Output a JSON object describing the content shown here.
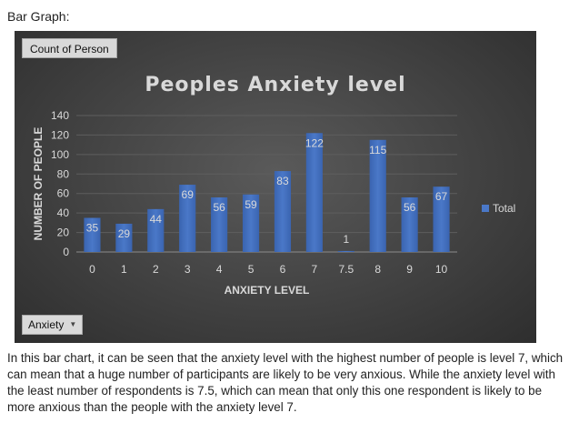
{
  "heading": "Bar Graph:",
  "pivot": {
    "value_field": "Count of Person",
    "filter_field": "Anxiety"
  },
  "caption": "In this bar chart, it can be seen that the anxiety level with the highest number of people is level 7, which can mean that a huge number of participants are likely to be very anxious. While the anxiety level with the least number of respondents is 7.5, which can mean that only this one respondent is likely to be more anxious than the people with the anxiety level 7.",
  "colors": {
    "bar": "#4a78c8",
    "background": "#3f3f3f",
    "text": "#d9d9d9"
  },
  "chart_data": {
    "type": "bar",
    "title": "Peoples Anxiety level",
    "xlabel": "ANXIETY LEVEL",
    "ylabel": "NUMBER OF PEOPLE",
    "categories": [
      "0",
      "1",
      "2",
      "3",
      "4",
      "5",
      "6",
      "7",
      "7.5",
      "8",
      "9",
      "10"
    ],
    "series": [
      {
        "name": "Total",
        "values": [
          35,
          29,
          44,
          69,
          56,
          59,
          83,
          122,
          1,
          115,
          56,
          67
        ]
      }
    ],
    "ylim": [
      0,
      140
    ],
    "yticks": [
      0,
      20,
      40,
      60,
      80,
      100,
      120,
      140
    ],
    "grid": true,
    "legend": "right"
  }
}
